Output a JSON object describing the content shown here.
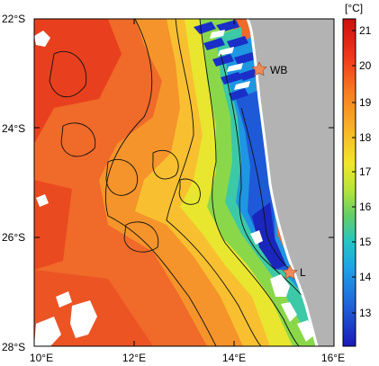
{
  "map": {
    "unit_label": "[°C]",
    "lat_labels": [
      "22°S",
      "24°S",
      "26°S",
      "28°S"
    ],
    "lon_labels": [
      "10°E",
      "12°E",
      "14°E",
      "16°E"
    ],
    "colorbar_ticks": [
      "21",
      "20",
      "19",
      "18",
      "17",
      "16",
      "15",
      "14",
      "13"
    ],
    "stations": [
      {
        "name": "WB",
        "lon": 14.5,
        "lat": -22.95
      },
      {
        "name": "L",
        "lon": 15.15,
        "lat": -26.58
      }
    ],
    "colors": {
      "land": "#b3b3b3",
      "station_star": "#f08a5a",
      "colorbar_top": "#d01010",
      "colorbar_bottom": "#1a1ab8"
    }
  }
}
